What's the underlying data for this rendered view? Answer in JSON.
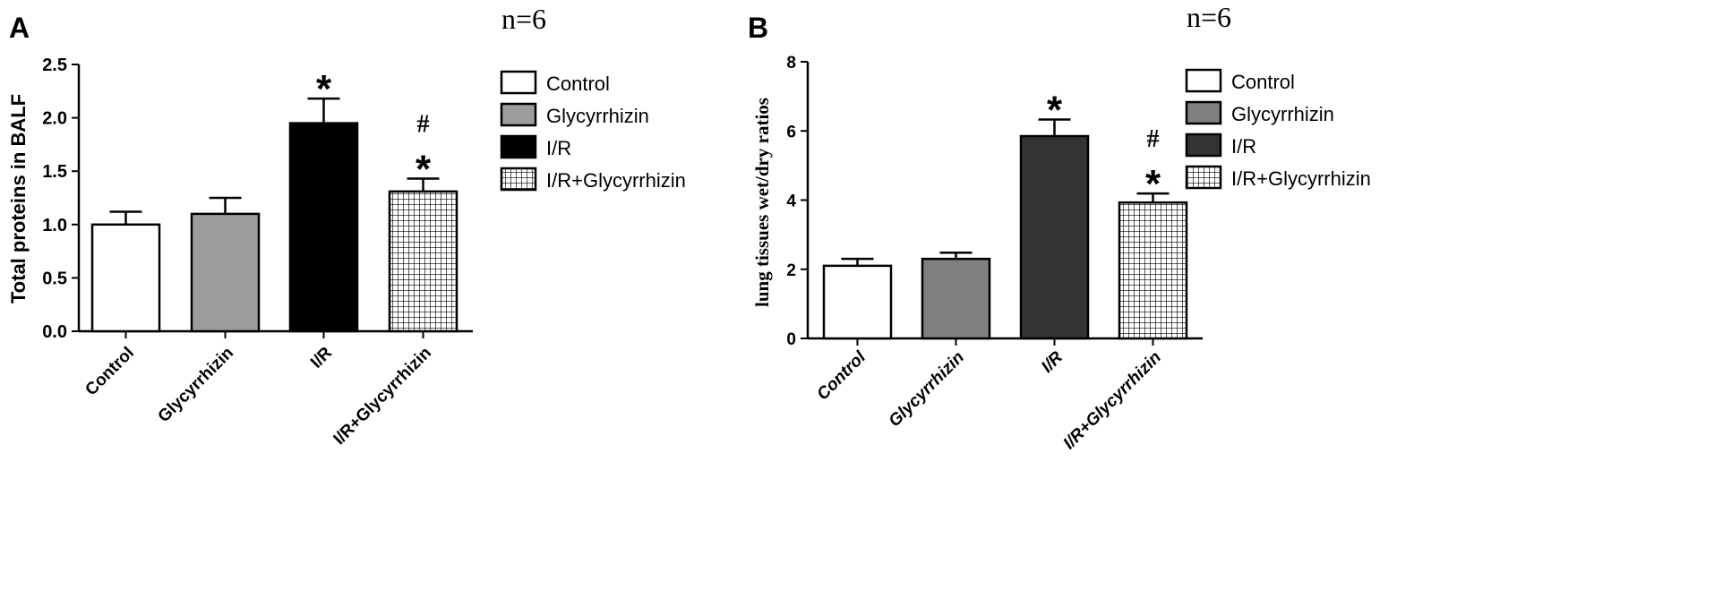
{
  "panels": [
    {
      "panel_label": "A",
      "n_label": "n=6",
      "chart_data": {
        "type": "bar",
        "categories": [
          "Control",
          "Glycyrrhizin",
          "I/R",
          "I/R+Glycyrrhizin"
        ],
        "values": [
          1.0,
          1.1,
          1.95,
          1.31
        ],
        "error": [
          0.12,
          0.15,
          0.23,
          0.12
        ],
        "markers": [
          [],
          [],
          [
            "*"
          ],
          [
            "#",
            "*"
          ]
        ],
        "ylabel": "Total proteins in BALF",
        "xlabel": "",
        "ylim": [
          0,
          2.5
        ],
        "yticks": [
          "0.0",
          "0.5",
          "1.0",
          "1.5",
          "2.0",
          "2.5"
        ],
        "legend": [
          "Control",
          "Glycyrrhizin",
          "I/R",
          "I/R+Glycyrrhizin"
        ],
        "legend_position": "right",
        "bar_styles": [
          "white",
          "light-gray",
          "black",
          "grid-hatch"
        ],
        "colors": {
          "Control": "#ffffff",
          "Glycyrrhizin": "#9d9d9d",
          "I/R": "#000000",
          "I/R+Glycyrrhizin": "hatch"
        },
        "grid": false,
        "tick_label_style": "bold"
      }
    },
    {
      "panel_label": "B",
      "n_label": "n=6",
      "chart_data": {
        "type": "bar",
        "categories": [
          "Control",
          "Glycyrrhizin",
          "I/R",
          "I/R+Glycyrrhizin"
        ],
        "values": [
          2.1,
          2.3,
          5.85,
          3.93
        ],
        "error": [
          0.2,
          0.18,
          0.48,
          0.26
        ],
        "markers": [
          [],
          [],
          [
            "*"
          ],
          [
            "#",
            "*"
          ]
        ],
        "ylabel": "lung tissues wet/dry ratios",
        "xlabel": "",
        "ylim": [
          0,
          8
        ],
        "yticks": [
          "0",
          "2",
          "4",
          "6",
          "8"
        ],
        "legend": [
          "Control",
          "Glycyrrhizin",
          "I/R",
          "I/R+Glycyrrhizin"
        ],
        "legend_position": "right",
        "bar_styles": [
          "white",
          "gray",
          "dark-gray",
          "grid-hatch"
        ],
        "colors": {
          "Control": "#ffffff",
          "Glycyrrhizin": "#808080",
          "I/R": "#333333",
          "I/R+Glycyrrhizin": "hatch"
        },
        "grid": false,
        "tick_label_style": "bold-italic"
      }
    }
  ]
}
